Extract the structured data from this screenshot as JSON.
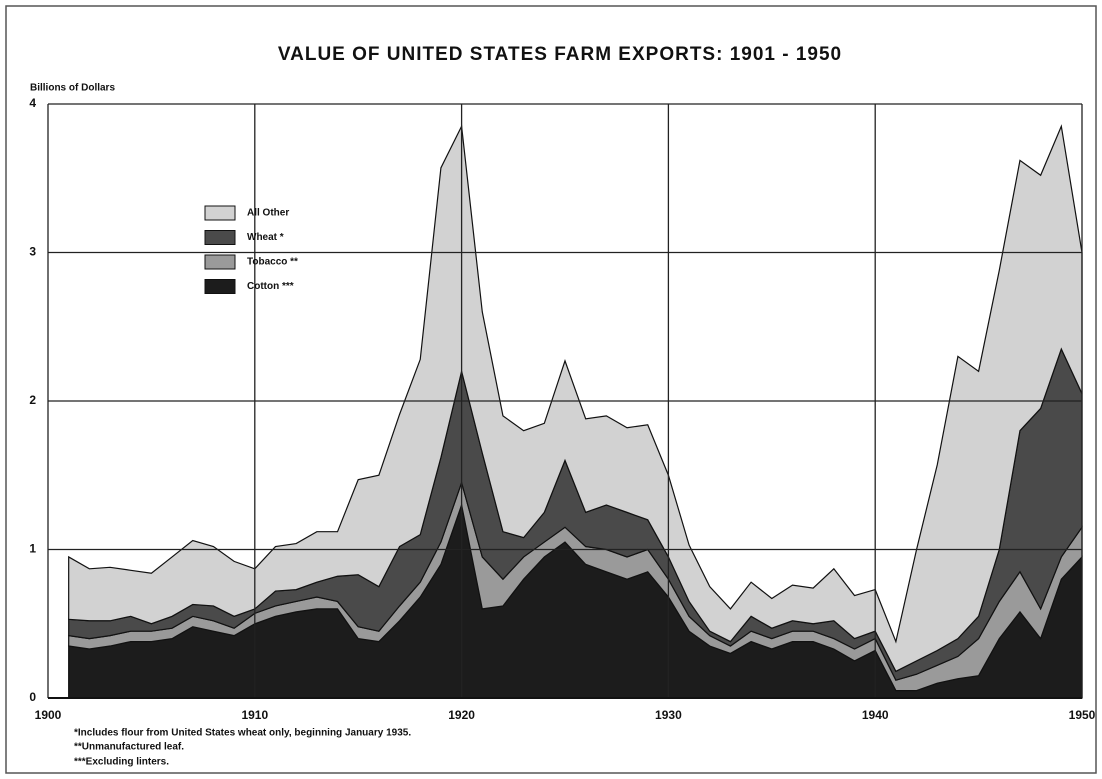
{
  "chart_data": {
    "type": "stacked_area",
    "title": "VALUE OF UNITED STATES FARM EXPORTS: 1901 - 1950",
    "y_label": "Billions of Dollars",
    "x": [
      1901,
      1902,
      1903,
      1904,
      1905,
      1906,
      1907,
      1908,
      1909,
      1910,
      1911,
      1912,
      1913,
      1914,
      1915,
      1916,
      1917,
      1918,
      1919,
      1920,
      1921,
      1922,
      1923,
      1924,
      1925,
      1926,
      1927,
      1928,
      1929,
      1930,
      1931,
      1932,
      1933,
      1934,
      1935,
      1936,
      1937,
      1938,
      1939,
      1940,
      1941,
      1942,
      1943,
      1944,
      1945,
      1946,
      1947,
      1948,
      1949,
      1950
    ],
    "series": [
      {
        "name": "Cotton ***",
        "color": "#1c1c1c",
        "values": [
          0.35,
          0.33,
          0.35,
          0.38,
          0.38,
          0.4,
          0.48,
          0.45,
          0.42,
          0.5,
          0.55,
          0.58,
          0.6,
          0.6,
          0.4,
          0.38,
          0.52,
          0.68,
          0.9,
          1.3,
          0.6,
          0.62,
          0.8,
          0.95,
          1.05,
          0.9,
          0.85,
          0.8,
          0.85,
          0.68,
          0.45,
          0.35,
          0.3,
          0.38,
          0.33,
          0.38,
          0.38,
          0.33,
          0.25,
          0.32,
          0.05,
          0.05,
          0.1,
          0.13,
          0.15,
          0.4,
          0.58,
          0.4,
          0.8,
          0.95
        ]
      },
      {
        "name": "Tobacco **",
        "color": "#9a9a9a",
        "values": [
          0.07,
          0.07,
          0.07,
          0.07,
          0.07,
          0.07,
          0.07,
          0.07,
          0.05,
          0.07,
          0.07,
          0.07,
          0.08,
          0.05,
          0.08,
          0.07,
          0.1,
          0.1,
          0.15,
          0.15,
          0.35,
          0.18,
          0.15,
          0.1,
          0.1,
          0.12,
          0.15,
          0.15,
          0.15,
          0.12,
          0.1,
          0.07,
          0.05,
          0.07,
          0.07,
          0.07,
          0.07,
          0.07,
          0.08,
          0.08,
          0.07,
          0.11,
          0.12,
          0.15,
          0.25,
          0.25,
          0.27,
          0.2,
          0.15,
          0.2
        ]
      },
      {
        "name": "Wheat *",
        "color": "#4a4a4a",
        "values": [
          0.11,
          0.12,
          0.1,
          0.1,
          0.05,
          0.08,
          0.08,
          0.1,
          0.08,
          0.03,
          0.1,
          0.08,
          0.1,
          0.17,
          0.35,
          0.3,
          0.4,
          0.32,
          0.57,
          0.75,
          0.7,
          0.32,
          0.13,
          0.2,
          0.45,
          0.23,
          0.3,
          0.3,
          0.2,
          0.15,
          0.1,
          0.03,
          0.03,
          0.1,
          0.07,
          0.07,
          0.05,
          0.12,
          0.07,
          0.05,
          0.06,
          0.09,
          0.1,
          0.12,
          0.15,
          0.35,
          0.95,
          1.35,
          1.4,
          0.9
        ]
      },
      {
        "name": "All Other",
        "color": "#d2d2d2",
        "values": [
          0.42,
          0.35,
          0.36,
          0.31,
          0.34,
          0.4,
          0.43,
          0.4,
          0.37,
          0.27,
          0.3,
          0.31,
          0.34,
          0.3,
          0.64,
          0.75,
          0.89,
          1.18,
          1.95,
          1.65,
          0.95,
          0.78,
          0.72,
          0.6,
          0.67,
          0.63,
          0.6,
          0.57,
          0.64,
          0.55,
          0.38,
          0.3,
          0.22,
          0.23,
          0.2,
          0.24,
          0.24,
          0.35,
          0.29,
          0.28,
          0.2,
          0.75,
          1.25,
          1.9,
          1.65,
          1.88,
          1.82,
          1.57,
          1.5,
          0.95
        ]
      }
    ],
    "xlim": [
      1900,
      1950
    ],
    "xticks": [
      1900,
      1910,
      1920,
      1930,
      1940,
      1950
    ],
    "ylim": [
      0,
      4
    ],
    "yticks": [
      0,
      1,
      2,
      3,
      4
    ],
    "grid": true,
    "legend": "upper left",
    "footnotes": [
      "*Includes flour from United States wheat only, beginning January 1935.",
      "**Unmanufactured leaf.",
      "***Excluding linters."
    ]
  }
}
